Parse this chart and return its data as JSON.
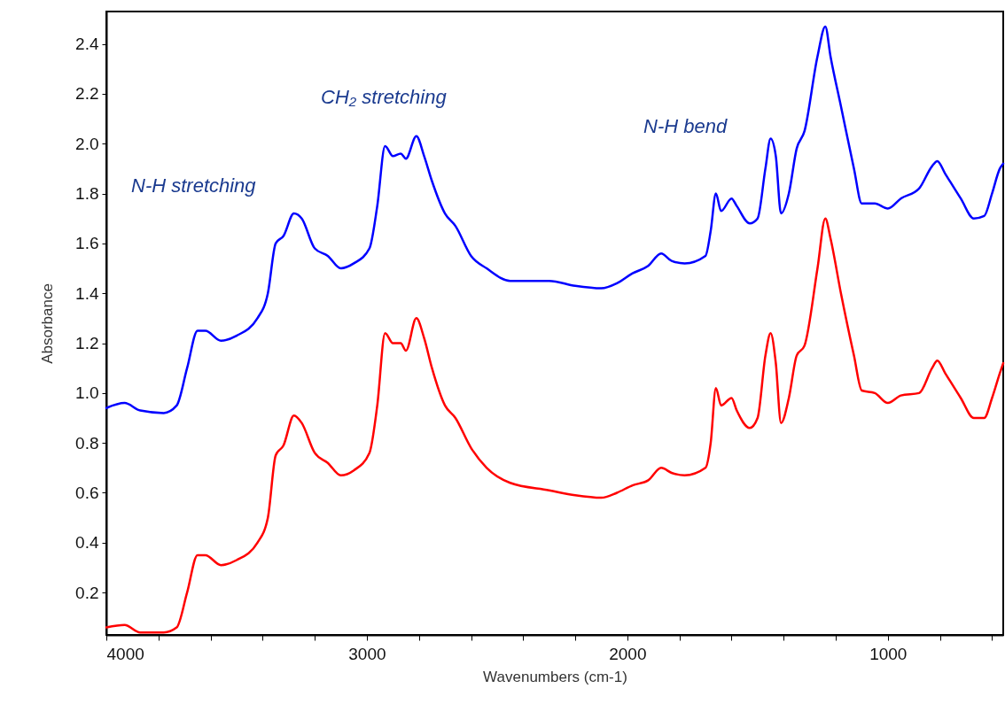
{
  "chart_data": {
    "type": "line",
    "xlabel": "Wavenumbers (cm-1)",
    "ylabel": "Absorbance",
    "xlim": [
      4000,
      557
    ],
    "ylim": [
      0.03,
      2.53
    ],
    "xticks": [
      4000,
      {
        "value": 3800,
        "label": null
      },
      {
        "value": 3600,
        "label": null
      },
      {
        "value": 3400,
        "label": null
      },
      {
        "value": 3200,
        "label": null
      },
      3000,
      {
        "value": 2800,
        "label": null
      },
      {
        "value": 2600,
        "label": null
      },
      {
        "value": 2400,
        "label": null
      },
      {
        "value": 2200,
        "label": null
      },
      2000,
      {
        "value": 1800,
        "label": null
      },
      {
        "value": 1600,
        "label": null
      },
      {
        "value": 1400,
        "label": null
      },
      {
        "value": 1200,
        "label": null
      },
      1000,
      {
        "value": 800,
        "label": null
      },
      {
        "value": 600,
        "label": null
      }
    ],
    "yticks": [
      {
        "value": 0.2,
        "label": "0.2"
      },
      {
        "value": 0.4,
        "label": "0.4"
      },
      {
        "value": 0.6,
        "label": "0.6"
      },
      {
        "value": 0.8,
        "label": "0.8"
      },
      {
        "value": 1.0,
        "label": "1.0"
      },
      {
        "value": 1.2,
        "label": "1.2"
      },
      {
        "value": 1.4,
        "label": "1.4"
      },
      {
        "value": 1.6,
        "label": "1.6"
      },
      {
        "value": 1.8,
        "label": "1.8"
      },
      {
        "value": 2.0,
        "label": "2.0"
      },
      {
        "value": 2.2,
        "label": "2.2"
      },
      {
        "value": 2.4,
        "label": "2.4"
      }
    ],
    "grid": false,
    "x": [
      4000,
      3930,
      3870,
      3780,
      3730,
      3690,
      3650,
      3620,
      3560,
      3500,
      3420,
      3380,
      3350,
      3320,
      3280,
      3250,
      3200,
      3150,
      3100,
      3050,
      2990,
      2960,
      2930,
      2900,
      2870,
      2850,
      2810,
      2780,
      2750,
      2700,
      2660,
      2600,
      2540,
      2450,
      2300,
      2200,
      2100,
      2040,
      1980,
      1920,
      1870,
      1830,
      1780,
      1700,
      1680,
      1660,
      1640,
      1600,
      1580,
      1530,
      1500,
      1470,
      1450,
      1430,
      1410,
      1380,
      1350,
      1320,
      1270,
      1240,
      1220,
      1180,
      1130,
      1100,
      1050,
      1000,
      950,
      880,
      830,
      810,
      780,
      720,
      670,
      630,
      600,
      570,
      557
    ],
    "series": [
      {
        "color": "#0000ff",
        "values": [
          0.94,
          0.96,
          0.93,
          0.92,
          0.95,
          1.1,
          1.25,
          1.25,
          1.21,
          1.23,
          1.3,
          1.4,
          1.6,
          1.63,
          1.72,
          1.7,
          1.58,
          1.55,
          1.5,
          1.52,
          1.58,
          1.75,
          1.99,
          1.95,
          1.96,
          1.94,
          2.03,
          1.95,
          1.85,
          1.72,
          1.67,
          1.55,
          1.5,
          1.45,
          1.45,
          1.43,
          1.42,
          1.44,
          1.48,
          1.51,
          1.56,
          1.53,
          1.52,
          1.55,
          1.65,
          1.8,
          1.73,
          1.78,
          1.75,
          1.68,
          1.7,
          1.9,
          2.02,
          1.95,
          1.72,
          1.8,
          1.98,
          2.05,
          2.35,
          2.47,
          2.35,
          2.15,
          1.9,
          1.76,
          1.76,
          1.74,
          1.78,
          1.82,
          1.91,
          1.93,
          1.88,
          1.78,
          1.7,
          1.71,
          1.8,
          1.9,
          1.92
        ]
      },
      {
        "color": "#ff0000",
        "values": [
          0.06,
          0.07,
          0.04,
          0.04,
          0.06,
          0.2,
          0.35,
          0.35,
          0.31,
          0.33,
          0.4,
          0.5,
          0.75,
          0.79,
          0.91,
          0.88,
          0.76,
          0.72,
          0.67,
          0.69,
          0.76,
          0.95,
          1.24,
          1.2,
          1.2,
          1.17,
          1.3,
          1.22,
          1.1,
          0.95,
          0.9,
          0.78,
          0.7,
          0.64,
          0.61,
          0.59,
          0.58,
          0.6,
          0.63,
          0.65,
          0.7,
          0.68,
          0.67,
          0.7,
          0.8,
          1.02,
          0.95,
          0.98,
          0.93,
          0.86,
          0.9,
          1.15,
          1.24,
          1.12,
          0.88,
          0.98,
          1.15,
          1.19,
          1.5,
          1.7,
          1.62,
          1.4,
          1.15,
          1.01,
          1.0,
          0.96,
          0.99,
          1.0,
          1.1,
          1.13,
          1.08,
          0.98,
          0.9,
          0.9,
          0.98,
          1.08,
          1.12
        ]
      }
    ],
    "annotations": [
      "N-H stretching",
      "CH₂ stretching",
      "N-H  bend"
    ]
  }
}
